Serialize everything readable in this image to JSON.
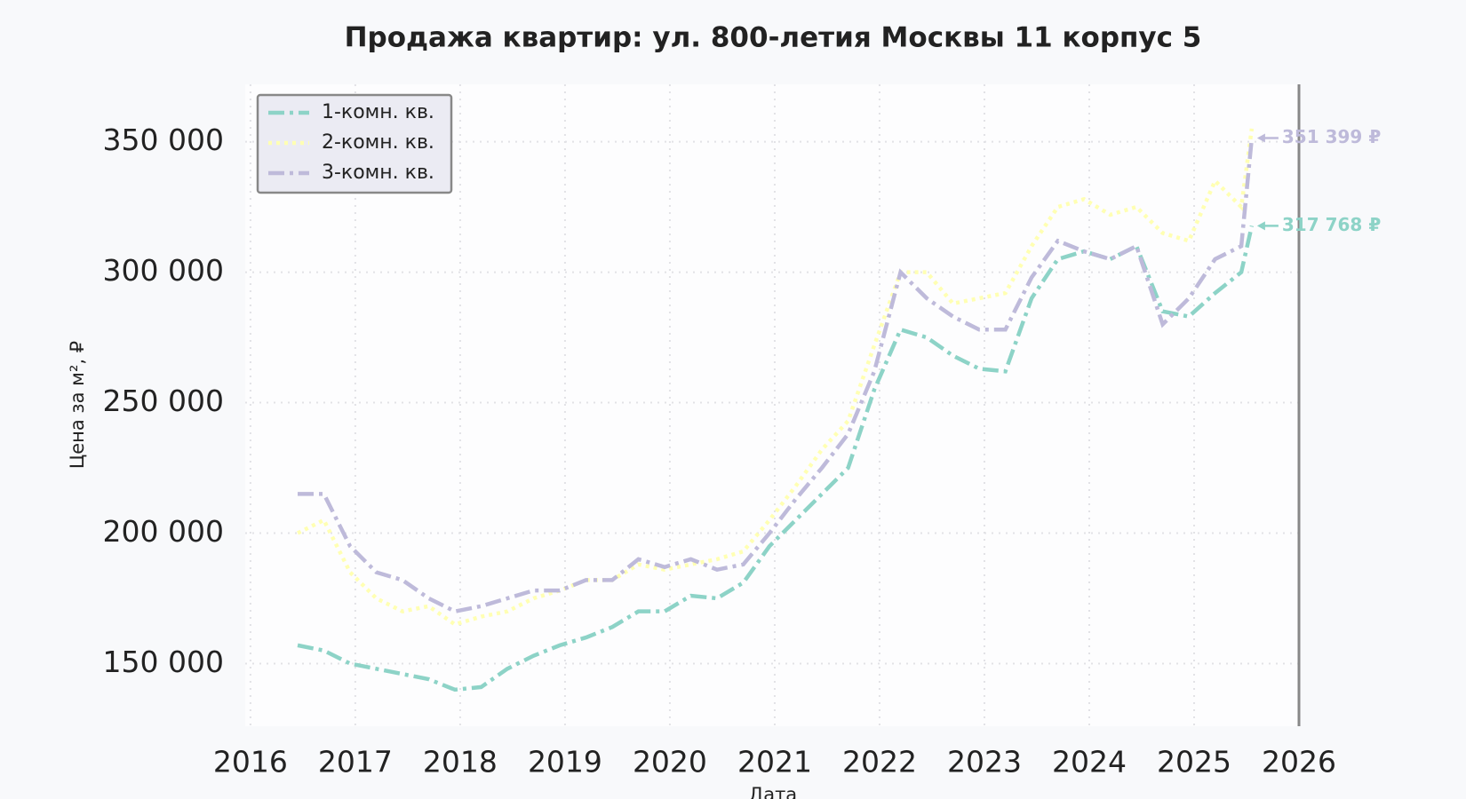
{
  "chart_data": {
    "type": "line",
    "title": "Продажа квартир: ул. 800-летия Москвы 11 корпус 5",
    "xlabel": "Дата",
    "ylabel": "Цена за м², ₽",
    "x": [
      2016.45,
      2016.7,
      2016.95,
      2017.2,
      2017.45,
      2017.7,
      2017.95,
      2018.2,
      2018.45,
      2018.7,
      2018.95,
      2019.2,
      2019.45,
      2019.7,
      2019.95,
      2020.2,
      2020.45,
      2020.7,
      2020.95,
      2021.2,
      2021.45,
      2021.7,
      2021.95,
      2022.2,
      2022.45,
      2022.7,
      2022.95,
      2023.2,
      2023.45,
      2023.7,
      2023.95,
      2024.2,
      2024.45,
      2024.7,
      2024.95,
      2025.2,
      2025.45,
      2025.55
    ],
    "series": [
      {
        "name": "1-комн. кв.",
        "color": "#8dd3c7",
        "linestyle": "dashdot",
        "values": [
          157000,
          155000,
          150000,
          148000,
          146000,
          144000,
          140000,
          141000,
          148000,
          153000,
          157000,
          160000,
          164000,
          170000,
          170000,
          176000,
          175000,
          181000,
          195000,
          205000,
          215000,
          225000,
          255000,
          278000,
          275000,
          268000,
          263000,
          262000,
          290000,
          305000,
          308000,
          305000,
          310000,
          285000,
          283000,
          292000,
          300000,
          317768
        ],
        "value_labels": [
          null,
          null,
          null,
          null,
          null,
          null,
          null,
          null,
          null,
          null,
          null,
          null,
          null,
          null,
          null,
          null,
          null,
          null,
          null,
          null,
          null,
          null,
          null,
          null,
          null,
          null,
          null,
          null,
          null,
          null,
          null,
          null,
          null,
          null,
          null,
          null,
          null,
          "317 768 ₽"
        ]
      },
      {
        "name": "2-комн. кв.",
        "color": "#ffffb3",
        "linestyle": "dotted",
        "values": [
          200000,
          205000,
          185000,
          175000,
          170000,
          172000,
          165000,
          168000,
          170000,
          175000,
          178000,
          182000,
          182000,
          188000,
          186000,
          188000,
          190000,
          193000,
          205000,
          218000,
          232000,
          243000,
          272000,
          300000,
          300000,
          288000,
          290000,
          292000,
          310000,
          325000,
          328000,
          322000,
          325000,
          315000,
          312000,
          335000,
          325000,
          355000
        ]
      },
      {
        "name": "3-комн. кв.",
        "color": "#bebada",
        "linestyle": "dashdot",
        "values": [
          215000,
          215000,
          195000,
          185000,
          182000,
          175000,
          170000,
          172000,
          175000,
          178000,
          178000,
          182000,
          182000,
          190000,
          187000,
          190000,
          186000,
          188000,
          200000,
          213000,
          225000,
          238000,
          262000,
          300000,
          290000,
          283000,
          278000,
          278000,
          298000,
          312000,
          308000,
          305000,
          310000,
          280000,
          290000,
          305000,
          310000,
          351399
        ],
        "value_labels": [
          null,
          null,
          null,
          null,
          null,
          null,
          null,
          null,
          null,
          null,
          null,
          null,
          null,
          null,
          null,
          null,
          null,
          null,
          null,
          null,
          null,
          null,
          null,
          null,
          null,
          null,
          null,
          null,
          null,
          null,
          null,
          null,
          null,
          null,
          null,
          null,
          null,
          "351 399 ₽"
        ]
      }
    ],
    "xlim": [
      2015.95,
      2026
    ],
    "xticks": [
      2016,
      2017,
      2018,
      2019,
      2020,
      2021,
      2022,
      2023,
      2024,
      2025,
      2026
    ],
    "ylim": [
      126000,
      372000
    ],
    "yticks": [
      {
        "value": 150000,
        "label": "150 000"
      },
      {
        "value": 200000,
        "label": "200 000"
      },
      {
        "value": 250000,
        "label": "250 000"
      },
      {
        "value": 300000,
        "label": "300 000"
      },
      {
        "value": 350000,
        "label": "350 000"
      }
    ],
    "grid": true,
    "legend": "upper left"
  }
}
